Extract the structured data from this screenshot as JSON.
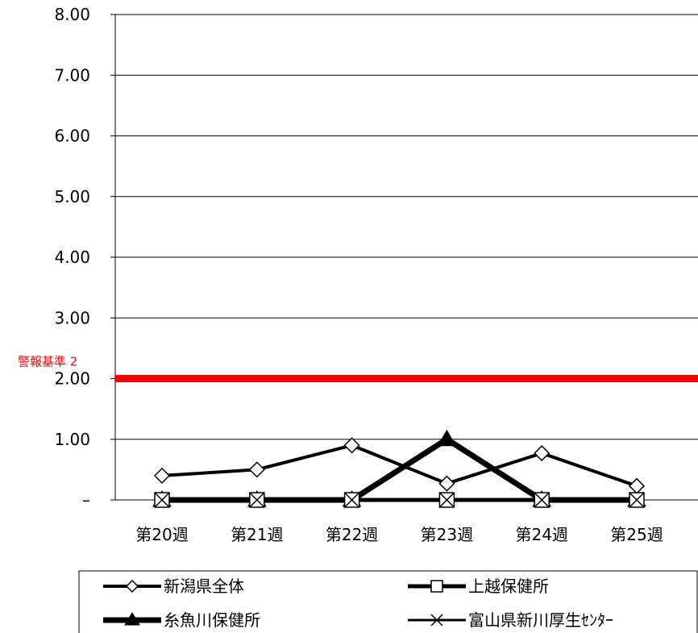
{
  "chart_data": {
    "type": "line",
    "categories": [
      "第20週",
      "第21週",
      "第22週",
      "第23週",
      "第24週",
      "第25週"
    ],
    "y_ticks": [
      "–",
      "1.00",
      "2.00",
      "3.00",
      "4.00",
      "5.00",
      "6.00",
      "7.00",
      "8.00"
    ],
    "ylim": [
      0,
      8
    ],
    "grid": true,
    "series": [
      {
        "name": "新潟県全体",
        "values": [
          0.4,
          0.5,
          0.9,
          0.27,
          0.77,
          0.23
        ],
        "marker": "diamond-open",
        "color": "#000000"
      },
      {
        "name": "上越保健所",
        "values": [
          0,
          0,
          0,
          0,
          0,
          0
        ],
        "marker": "square-open",
        "color": "#000000"
      },
      {
        "name": "糸魚川保健所",
        "values": [
          0,
          0,
          0,
          1,
          0,
          0
        ],
        "marker": "triangle-filled",
        "color": "#000000"
      },
      {
        "name": "富山県新川厚生ｾﾝﾀｰ",
        "values": [
          0,
          0,
          0,
          0,
          0,
          0
        ],
        "marker": "x",
        "color": "#000000"
      }
    ],
    "threshold": {
      "label": "警報基準 2",
      "value": 2,
      "color": "#ff0000"
    },
    "legend_position": "bottom"
  }
}
